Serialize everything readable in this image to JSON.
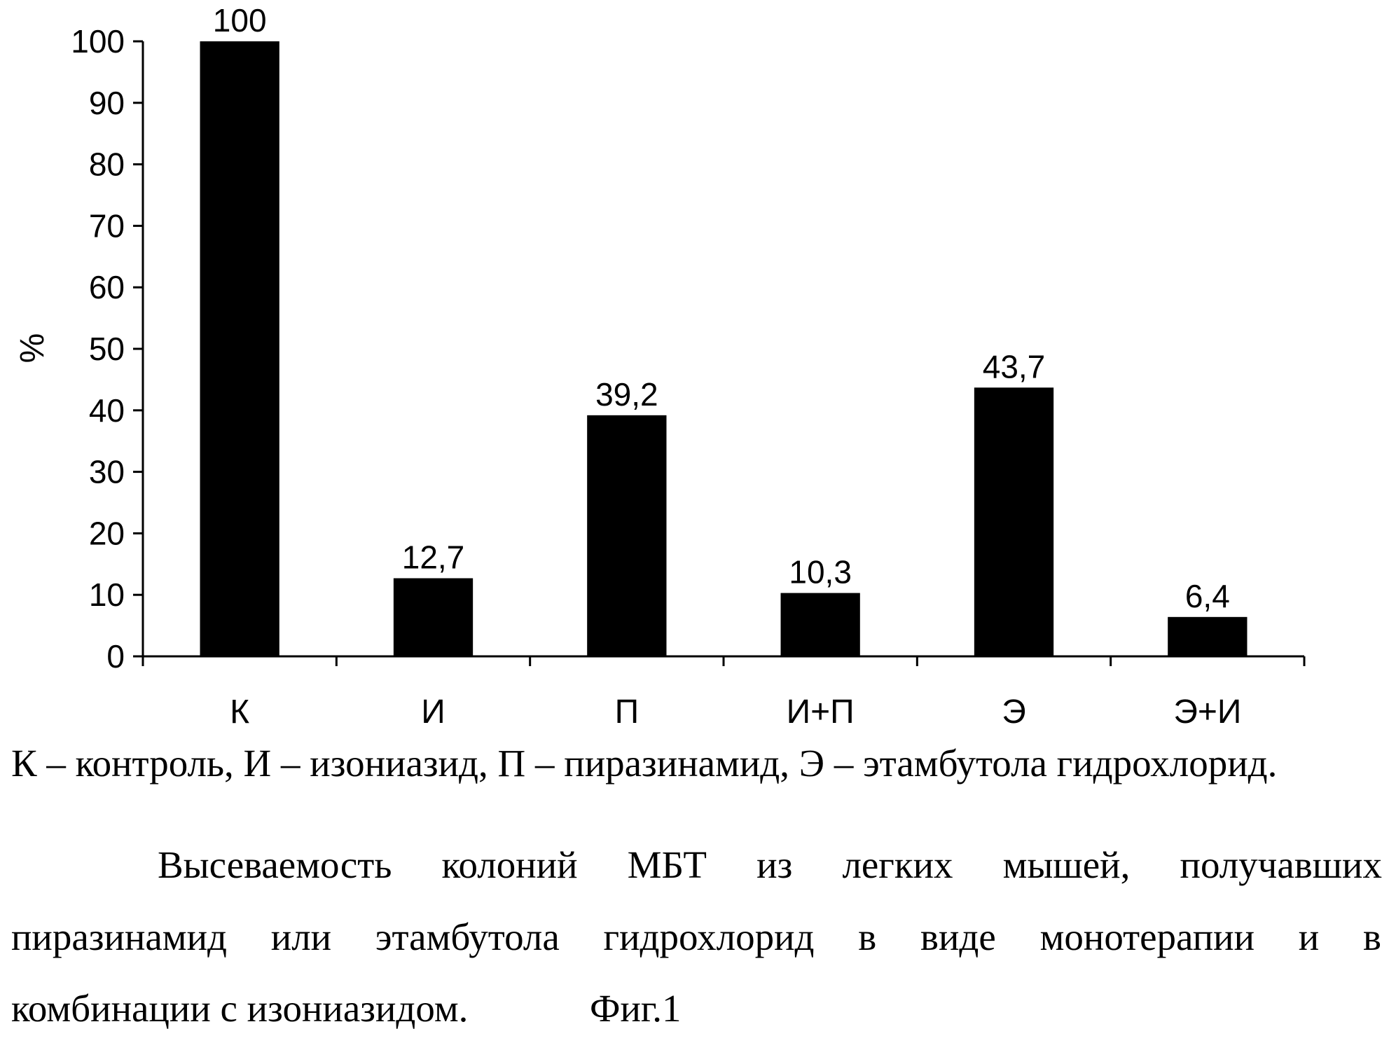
{
  "chart_data": {
    "type": "bar",
    "categories": [
      "К",
      "И",
      "П",
      "И+П",
      "Э",
      "Э+И"
    ],
    "values": [
      100,
      12.7,
      39.2,
      10.3,
      43.7,
      6.4
    ],
    "value_labels": [
      "100",
      "12,7",
      "39,2",
      "10,3",
      "43,7",
      "6,4"
    ],
    "ylabel": "%",
    "ylim": [
      0,
      100
    ],
    "yticks": [
      0,
      10,
      20,
      30,
      40,
      50,
      60,
      70,
      80,
      90,
      100
    ],
    "grid": false,
    "bar_color": "#000000"
  },
  "caption": {
    "legend": "К – контроль,  И – изониазид, П – пиразинамид, Э – этамбутола гидрохлорид.",
    "line1": "Высеваемость колоний МБТ из легких мышей, получавших",
    "line2": "пиразинамид или этамбутола гидрохлорид в виде монотерапии и в",
    "line3": "комбинации с изониазидом.",
    "figure": "Фиг.1"
  }
}
